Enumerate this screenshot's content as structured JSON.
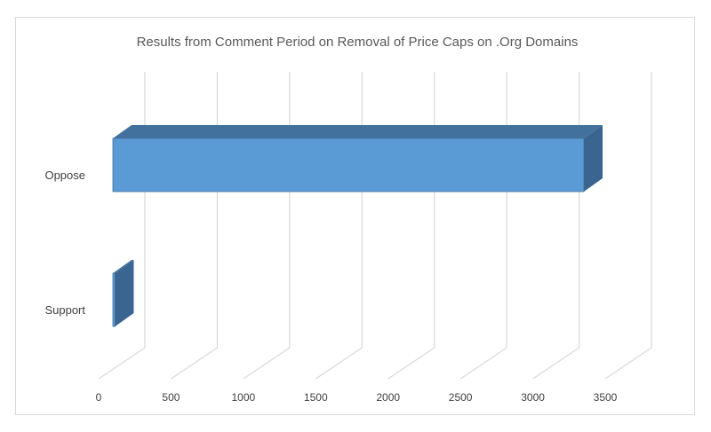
{
  "chart_data": {
    "type": "bar",
    "orientation": "horizontal",
    "style": "3d",
    "title": "Results from Comment Period on Removal of Price Caps on .Org Domains",
    "categories": [
      "Oppose",
      "Support"
    ],
    "values": [
      3200,
      15
    ],
    "xlim": [
      0,
      3500
    ],
    "x_ticks": [
      "0",
      "500",
      "1000",
      "1500",
      "2000",
      "2500",
      "3000",
      "3500"
    ],
    "grid": true,
    "legend": "none",
    "colors": {
      "bar_front": "#5b9bd5",
      "bar_top": "#41719c",
      "bar_side": "#3a6590",
      "grid": "#d9d9d9"
    }
  }
}
